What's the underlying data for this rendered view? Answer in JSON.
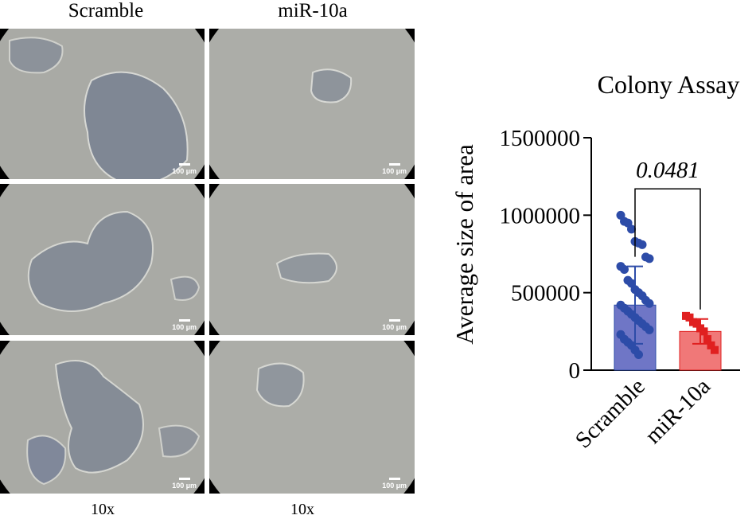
{
  "figure": {
    "column_titles": [
      "Scramble",
      "miR-10a"
    ],
    "magnification_labels": [
      "10x",
      "10x"
    ],
    "scale_bar_label": "100 µm"
  },
  "colors": {
    "scramble_bar": "#6f76c6",
    "scramble_point": "#2d4ca8",
    "mir10a_bar": "#f07878",
    "mir10a_point": "#e02020",
    "micrograph_bg": "#a9aaa5"
  },
  "chart_data": {
    "type": "bar",
    "title": "Colony Assay",
    "ylabel": "Average size of area",
    "xlabel": "",
    "categories": [
      "Scramble",
      "miR-10a"
    ],
    "values": [
      420000,
      250000
    ],
    "error_sd": [
      250000,
      80000
    ],
    "ylim": [
      0,
      1500000
    ],
    "yticks": [
      0,
      500000,
      1000000,
      1500000
    ],
    "ytick_labels": [
      "0",
      "500000",
      "1000000",
      "1500000"
    ],
    "points": [
      [
        1000000,
        960000,
        950000,
        910000,
        830000,
        820000,
        810000,
        730000,
        720000,
        670000,
        650000,
        580000,
        560000,
        520000,
        500000,
        480000,
        450000,
        430000,
        420000,
        400000,
        380000,
        360000,
        340000,
        320000,
        300000,
        280000,
        260000,
        230000,
        200000,
        180000,
        160000,
        130000,
        100000
      ],
      [
        350000,
        340000,
        310000,
        300000,
        270000,
        250000,
        200000,
        160000,
        130000
      ]
    ],
    "significance": {
      "label": "0.0481",
      "between": [
        0,
        1
      ],
      "y": 1170000
    }
  }
}
